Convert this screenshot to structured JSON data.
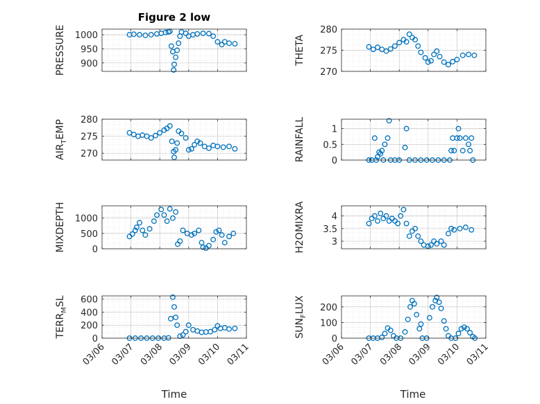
{
  "title": "Figure 2 low",
  "x_axis": {
    "label": "Time",
    "ticks": [
      "03/06",
      "03/07",
      "03/08",
      "03/09",
      "03/10",
      "03/11"
    ]
  },
  "colors": {
    "marker": "#0072BD",
    "axis": "#262626",
    "grid": "#DCDCDC"
  },
  "chart_data": [
    {
      "type": "scatter",
      "ylabel": [
        "PRESSURE"
      ],
      "ylim": [
        870,
        1020
      ],
      "yticks": [
        {
          "v": 1000,
          "t": "1000"
        },
        {
          "v": 950,
          "t": "950"
        },
        {
          "v": 900,
          "t": "900"
        }
      ],
      "series_points": [
        [
          0.95,
          1000
        ],
        [
          1.1,
          1002
        ],
        [
          1.3,
          1000
        ],
        [
          1.5,
          998
        ],
        [
          1.7,
          1000
        ],
        [
          1.9,
          1003
        ],
        [
          2.05,
          1005
        ],
        [
          2.2,
          1008
        ],
        [
          2.3,
          1010
        ],
        [
          2.35,
          1012
        ],
        [
          2.4,
          960
        ],
        [
          2.45,
          940
        ],
        [
          2.5,
          895
        ],
        [
          2.48,
          875
        ],
        [
          2.55,
          920
        ],
        [
          2.6,
          945
        ],
        [
          2.65,
          970
        ],
        [
          2.7,
          995
        ],
        [
          2.75,
          1010
        ],
        [
          2.9,
          1005
        ],
        [
          3.0,
          995
        ],
        [
          3.15,
          1000
        ],
        [
          3.3,
          1003
        ],
        [
          3.5,
          1005
        ],
        [
          3.7,
          1004
        ],
        [
          3.85,
          995
        ],
        [
          4.0,
          975
        ],
        [
          4.15,
          965
        ],
        [
          4.25,
          975
        ],
        [
          4.4,
          970
        ],
        [
          4.6,
          968
        ]
      ]
    },
    {
      "type": "scatter",
      "ylabel": [
        "THETA"
      ],
      "ylim": [
        270,
        280
      ],
      "yticks": [
        {
          "v": 280,
          "t": "280"
        },
        {
          "v": 275,
          "t": "275"
        },
        {
          "v": 270,
          "t": "270"
        }
      ],
      "series_points": [
        [
          0.95,
          275.8
        ],
        [
          1.1,
          275.2
        ],
        [
          1.25,
          275.7
        ],
        [
          1.4,
          275.2
        ],
        [
          1.55,
          274.8
        ],
        [
          1.7,
          275.3
        ],
        [
          1.85,
          276.0
        ],
        [
          2.0,
          276.8
        ],
        [
          2.15,
          277.5
        ],
        [
          2.25,
          277.0
        ],
        [
          2.35,
          278.8
        ],
        [
          2.45,
          278.0
        ],
        [
          2.55,
          277.5
        ],
        [
          2.65,
          276.0
        ],
        [
          2.75,
          274.5
        ],
        [
          2.9,
          273.2
        ],
        [
          3.0,
          272.2
        ],
        [
          3.1,
          272.5
        ],
        [
          3.2,
          274.0
        ],
        [
          3.3,
          274.8
        ],
        [
          3.4,
          273.5
        ],
        [
          3.55,
          272.2
        ],
        [
          3.7,
          271.6
        ],
        [
          3.85,
          272.3
        ],
        [
          4.0,
          272.8
        ],
        [
          4.2,
          273.8
        ],
        [
          4.4,
          274.0
        ],
        [
          4.6,
          273.8
        ]
      ]
    },
    {
      "type": "scatter",
      "ylabel": [
        "AIR",
        "T",
        "EMP"
      ],
      "ylim": [
        268,
        280
      ],
      "yticks": [
        {
          "v": 280,
          "t": "280"
        },
        {
          "v": 275,
          "t": "275"
        },
        {
          "v": 270,
          "t": "270"
        }
      ],
      "series_points": [
        [
          0.95,
          276.0
        ],
        [
          1.1,
          275.5
        ],
        [
          1.25,
          275.0
        ],
        [
          1.4,
          275.3
        ],
        [
          1.55,
          275.0
        ],
        [
          1.7,
          274.5
        ],
        [
          1.85,
          275.2
        ],
        [
          2.0,
          276.0
        ],
        [
          2.15,
          276.8
        ],
        [
          2.25,
          277.3
        ],
        [
          2.35,
          278.0
        ],
        [
          2.42,
          273.5
        ],
        [
          2.48,
          270.5
        ],
        [
          2.5,
          268.8
        ],
        [
          2.55,
          271.0
        ],
        [
          2.6,
          273.0
        ],
        [
          2.65,
          276.5
        ],
        [
          2.75,
          275.8
        ],
        [
          2.9,
          274.5
        ],
        [
          3.0,
          271.0
        ],
        [
          3.1,
          271.3
        ],
        [
          3.2,
          272.5
        ],
        [
          3.3,
          273.5
        ],
        [
          3.4,
          273.0
        ],
        [
          3.55,
          272.0
        ],
        [
          3.7,
          271.5
        ],
        [
          3.85,
          272.3
        ],
        [
          4.0,
          272.0
        ],
        [
          4.2,
          271.8
        ],
        [
          4.4,
          272.0
        ],
        [
          4.6,
          271.3
        ]
      ]
    },
    {
      "type": "scatter",
      "ylabel": [
        "RAINFALL"
      ],
      "ylim": [
        0,
        1.3
      ],
      "yticks": [
        {
          "v": 1,
          "t": "1"
        },
        {
          "v": 0.5,
          "t": "0.5"
        },
        {
          "v": 0,
          "t": "0"
        }
      ],
      "series_points": [
        [
          0.95,
          0
        ],
        [
          1.05,
          0
        ],
        [
          1.15,
          0.7
        ],
        [
          1.2,
          0
        ],
        [
          1.25,
          0.1
        ],
        [
          1.3,
          0.25
        ],
        [
          1.35,
          0.2
        ],
        [
          1.4,
          0.3
        ],
        [
          1.45,
          0
        ],
        [
          1.5,
          0.5
        ],
        [
          1.6,
          0.7
        ],
        [
          1.65,
          1.25
        ],
        [
          1.7,
          0
        ],
        [
          1.85,
          0
        ],
        [
          2.0,
          0
        ],
        [
          2.2,
          0.4
        ],
        [
          2.25,
          1.0
        ],
        [
          2.35,
          0
        ],
        [
          2.55,
          0
        ],
        [
          2.75,
          0
        ],
        [
          2.95,
          0
        ],
        [
          3.15,
          0
        ],
        [
          3.35,
          0
        ],
        [
          3.55,
          0
        ],
        [
          3.75,
          0
        ],
        [
          3.8,
          0.3
        ],
        [
          3.85,
          0.7
        ],
        [
          3.9,
          0.3
        ],
        [
          4.0,
          0.7
        ],
        [
          4.05,
          1.0
        ],
        [
          4.1,
          0.7
        ],
        [
          4.2,
          0.3
        ],
        [
          4.3,
          0.7
        ],
        [
          4.4,
          0.5
        ],
        [
          4.45,
          0.3
        ],
        [
          4.5,
          0.7
        ],
        [
          4.55,
          0
        ]
      ]
    },
    {
      "type": "scatter",
      "ylabel": [
        "MIXDEPTH"
      ],
      "ylim": [
        0,
        1400
      ],
      "yticks": [
        {
          "v": 1000,
          "t": "1000"
        },
        {
          "v": 500,
          "t": "500"
        },
        {
          "v": 0,
          "t": "0"
        }
      ],
      "series_points": [
        [
          0.95,
          400
        ],
        [
          1.05,
          480
        ],
        [
          1.15,
          600
        ],
        [
          1.2,
          700
        ],
        [
          1.3,
          850
        ],
        [
          1.4,
          600
        ],
        [
          1.5,
          450
        ],
        [
          1.65,
          650
        ],
        [
          1.8,
          900
        ],
        [
          1.9,
          1100
        ],
        [
          2.05,
          1280
        ],
        [
          2.15,
          1100
        ],
        [
          2.25,
          900
        ],
        [
          2.35,
          1300
        ],
        [
          2.45,
          1000
        ],
        [
          2.55,
          1200
        ],
        [
          2.62,
          150
        ],
        [
          2.7,
          250
        ],
        [
          2.8,
          600
        ],
        [
          2.95,
          500
        ],
        [
          3.1,
          450
        ],
        [
          3.2,
          500
        ],
        [
          3.35,
          600
        ],
        [
          3.45,
          200
        ],
        [
          3.5,
          50
        ],
        [
          3.6,
          20
        ],
        [
          3.7,
          100
        ],
        [
          3.85,
          300
        ],
        [
          3.95,
          550
        ],
        [
          4.05,
          600
        ],
        [
          4.15,
          450
        ],
        [
          4.25,
          200
        ],
        [
          4.4,
          400
        ],
        [
          4.55,
          500
        ]
      ]
    },
    {
      "type": "scatter",
      "ylabel": [
        "H2OMIXRA"
      ],
      "ylim": [
        2.7,
        4.4
      ],
      "yticks": [
        {
          "v": 4,
          "t": "4"
        },
        {
          "v": 3.5,
          "t": "3.5"
        },
        {
          "v": 3,
          "t": "3"
        }
      ],
      "series_points": [
        [
          0.95,
          3.7
        ],
        [
          1.05,
          3.9
        ],
        [
          1.15,
          4.0
        ],
        [
          1.25,
          3.8
        ],
        [
          1.35,
          4.1
        ],
        [
          1.45,
          3.9
        ],
        [
          1.55,
          4.0
        ],
        [
          1.65,
          3.8
        ],
        [
          1.75,
          3.9
        ],
        [
          1.85,
          3.8
        ],
        [
          1.95,
          3.7
        ],
        [
          2.05,
          4.0
        ],
        [
          2.15,
          4.25
        ],
        [
          2.25,
          3.7
        ],
        [
          2.35,
          3.2
        ],
        [
          2.45,
          3.4
        ],
        [
          2.55,
          3.5
        ],
        [
          2.65,
          3.2
        ],
        [
          2.75,
          3.0
        ],
        [
          2.85,
          2.85
        ],
        [
          3.0,
          2.8
        ],
        [
          3.1,
          2.85
        ],
        [
          3.2,
          3.0
        ],
        [
          3.3,
          2.9
        ],
        [
          3.45,
          3.0
        ],
        [
          3.55,
          2.85
        ],
        [
          3.7,
          3.3
        ],
        [
          3.8,
          3.5
        ],
        [
          3.9,
          3.45
        ],
        [
          4.1,
          3.5
        ],
        [
          4.3,
          3.55
        ],
        [
          4.5,
          3.45
        ]
      ]
    },
    {
      "type": "scatter",
      "ylabel": [
        "TERR",
        "M",
        "SL"
      ],
      "ylim": [
        0,
        650
      ],
      "yticks": [
        {
          "v": 600,
          "t": "600"
        },
        {
          "v": 400,
          "t": "400"
        },
        {
          "v": 200,
          "t": "200"
        },
        {
          "v": 0,
          "t": "0"
        }
      ],
      "series_points": [
        [
          0.95,
          0
        ],
        [
          1.15,
          0
        ],
        [
          1.35,
          0
        ],
        [
          1.55,
          0
        ],
        [
          1.75,
          0
        ],
        [
          1.95,
          0
        ],
        [
          2.15,
          0
        ],
        [
          2.3,
          5
        ],
        [
          2.38,
          300
        ],
        [
          2.45,
          630
        ],
        [
          2.5,
          480
        ],
        [
          2.55,
          320
        ],
        [
          2.6,
          200
        ],
        [
          2.7,
          30
        ],
        [
          2.8,
          50
        ],
        [
          2.9,
          100
        ],
        [
          3.0,
          200
        ],
        [
          3.15,
          130
        ],
        [
          3.3,
          110
        ],
        [
          3.45,
          90
        ],
        [
          3.6,
          95
        ],
        [
          3.75,
          100
        ],
        [
          3.9,
          130
        ],
        [
          4.0,
          190
        ],
        [
          4.1,
          150
        ],
        [
          4.25,
          160
        ],
        [
          4.4,
          140
        ],
        [
          4.6,
          150
        ]
      ]
    },
    {
      "type": "scatter",
      "ylabel": [
        "SUN",
        "F",
        "LUX"
      ],
      "ylim": [
        0,
        270
      ],
      "yticks": [
        {
          "v": 200,
          "t": "200"
        },
        {
          "v": 100,
          "t": "100"
        },
        {
          "v": 0,
          "t": "0"
        }
      ],
      "series_points": [
        [
          0.95,
          0
        ],
        [
          1.1,
          0
        ],
        [
          1.25,
          0
        ],
        [
          1.4,
          5
        ],
        [
          1.5,
          30
        ],
        [
          1.6,
          65
        ],
        [
          1.7,
          50
        ],
        [
          1.8,
          15
        ],
        [
          1.9,
          0
        ],
        [
          2.05,
          0
        ],
        [
          2.2,
          40
        ],
        [
          2.3,
          120
        ],
        [
          2.38,
          200
        ],
        [
          2.45,
          240
        ],
        [
          2.52,
          220
        ],
        [
          2.6,
          150
        ],
        [
          2.7,
          60
        ],
        [
          2.75,
          90
        ],
        [
          2.8,
          0
        ],
        [
          2.95,
          0
        ],
        [
          3.05,
          130
        ],
        [
          3.15,
          200
        ],
        [
          3.25,
          240
        ],
        [
          3.3,
          260
        ],
        [
          3.38,
          230
        ],
        [
          3.45,
          190
        ],
        [
          3.55,
          110
        ],
        [
          3.62,
          60
        ],
        [
          3.7,
          15
        ],
        [
          3.8,
          0
        ],
        [
          3.95,
          0
        ],
        [
          4.05,
          30
        ],
        [
          4.15,
          60
        ],
        [
          4.25,
          70
        ],
        [
          4.35,
          60
        ],
        [
          4.45,
          35
        ],
        [
          4.55,
          10
        ],
        [
          4.62,
          0
        ]
      ]
    }
  ]
}
